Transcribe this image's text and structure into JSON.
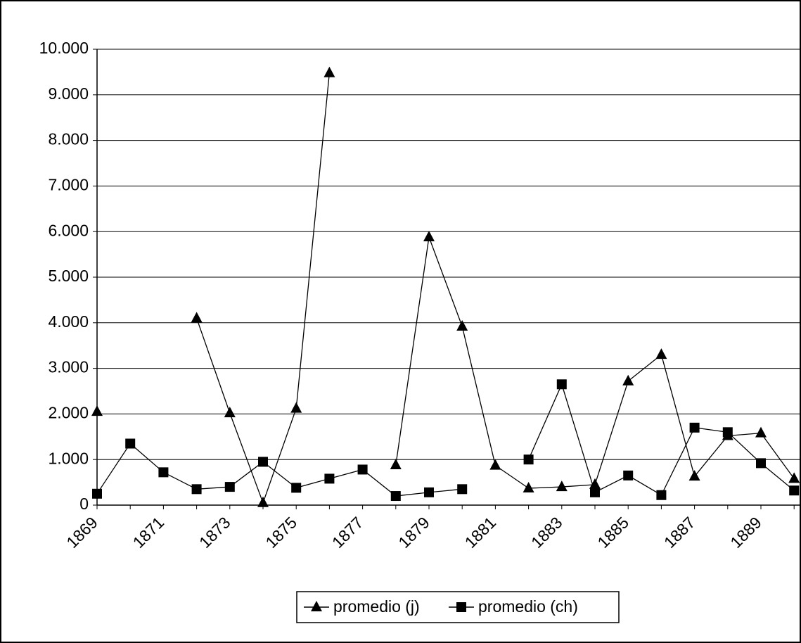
{
  "chart_data": {
    "type": "line",
    "categories": [
      "1869",
      null,
      "1871",
      null,
      "1873",
      null,
      "1875",
      null,
      "1877",
      null,
      "1879",
      null,
      "1881",
      null,
      "1883",
      null,
      "1885",
      null,
      "1887",
      null,
      "1889",
      null
    ],
    "series": [
      {
        "name": "promedio (j)",
        "color": "#000000",
        "marker": "triangle",
        "values": [
          2050,
          null,
          null,
          4100,
          2020,
          50,
          2120,
          9480,
          null,
          880,
          5880,
          3920,
          870,
          370,
          400,
          450,
          2720,
          3300,
          630,
          1520,
          1580,
          580
        ]
      },
      {
        "name": "promedio (ch)",
        "color": "#000000",
        "marker": "square",
        "values": [
          250,
          1350,
          720,
          350,
          400,
          950,
          380,
          580,
          780,
          200,
          280,
          350,
          null,
          1000,
          2650,
          280,
          650,
          220,
          1700,
          1600,
          920,
          320
        ]
      }
    ],
    "ylim": [
      0,
      10000
    ],
    "yticks": [
      0,
      {
        "value": 1000,
        "label": "1.000"
      },
      {
        "value": 2000,
        "label": "2.000"
      },
      {
        "value": 3000,
        "label": "3.000"
      },
      {
        "value": 4000,
        "label": "4.000"
      },
      {
        "value": 5000,
        "label": "5.000"
      },
      {
        "value": 6000,
        "label": "6.000"
      },
      {
        "value": 7000,
        "label": "7.000"
      },
      {
        "value": 8000,
        "label": "8.000"
      },
      {
        "value": 9000,
        "label": "9.000"
      },
      {
        "value": 10000,
        "label": "10.000"
      }
    ],
    "grid": true,
    "legend": "bottom"
  }
}
